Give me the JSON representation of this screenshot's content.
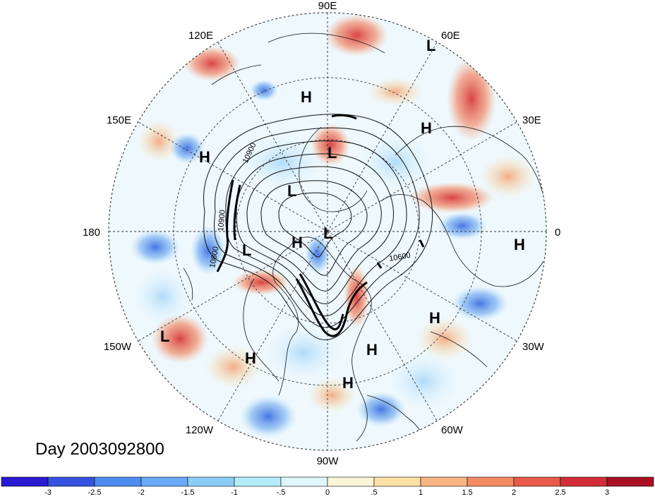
{
  "title": "Day 2003092800",
  "longitude_labels": {
    "lon_90e": "90E",
    "lon_60e": "60E",
    "lon_30e": "30E",
    "lon_0": "0",
    "lon_30w": "30W",
    "lon_60w": "60W",
    "lon_90w": "90W",
    "lon_120w": "120W",
    "lon_150w": "150W",
    "lon_180": "180",
    "lon_150e": "150E",
    "lon_120e": "120E"
  },
  "pressure_centers": [
    {
      "type": "L"
    },
    {
      "type": "H"
    },
    {
      "type": "H"
    },
    {
      "type": "H"
    },
    {
      "type": "L"
    },
    {
      "type": "L"
    },
    {
      "type": "H"
    },
    {
      "type": "L"
    },
    {
      "type": "L"
    },
    {
      "type": "H"
    },
    {
      "type": "H"
    },
    {
      "type": "L"
    },
    {
      "type": "H"
    },
    {
      "type": "H"
    },
    {
      "type": "H"
    }
  ],
  "contour_labels": [
    "10900",
    "10900",
    "10800",
    "10600"
  ],
  "colorbar": {
    "colors": [
      "#2a1ad0",
      "#3553e0",
      "#4d8cf0",
      "#6aaaf6",
      "#8ccdf8",
      "#b4ecfb",
      "#dff6fd",
      "#fcf6d8",
      "#fbe1a4",
      "#f8b483",
      "#f28a64",
      "#e85a4b",
      "#d22d37",
      "#a80f22"
    ],
    "labels": [
      "-3",
      "-2.5",
      "-2",
      "-1.5",
      "-1",
      "-.5",
      "0",
      ".5",
      "1",
      "1.5",
      "2",
      "2.5",
      "3"
    ]
  }
}
